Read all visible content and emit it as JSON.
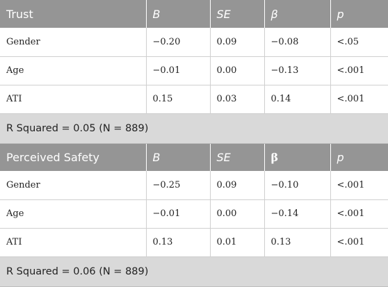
{
  "sections": [
    {
      "title": "Trust",
      "headers": [
        "B",
        "SE",
        "β",
        "p"
      ],
      "rows": [
        {
          "variable": "Gender",
          "B": "−0.20",
          "SE": "0.09",
          "beta": "−0.08",
          "p": "<.05"
        },
        {
          "variable": "Age",
          "B": "−0.01",
          "SE": "0.00",
          "beta": "−0.13",
          "p": "<.001"
        },
        {
          "variable": "ATI",
          "B": "0.15",
          "SE": "0.03",
          "beta": "0.14",
          "p": "<.001"
        }
      ],
      "note": "R Squared = 0.05 (N = 889)"
    },
    {
      "title": "Perceived Safety",
      "headers": [
        "B",
        "SE",
        "β",
        "p"
      ],
      "rows": [
        {
          "variable": "Gender",
          "B": "−0.25",
          "SE": "0.09",
          "beta": "−0.10",
          "p": "<.001"
        },
        {
          "variable": "Age",
          "B": "−0.01",
          "SE": "0.00",
          "beta": "−0.14",
          "p": "<.001"
        },
        {
          "variable": "ATI",
          "B": "0.13",
          "SE": "0.01",
          "beta": "0.13",
          "p": "<.001"
        }
      ],
      "note": "R Squared = 0.06 (N = 889)"
    }
  ]
}
